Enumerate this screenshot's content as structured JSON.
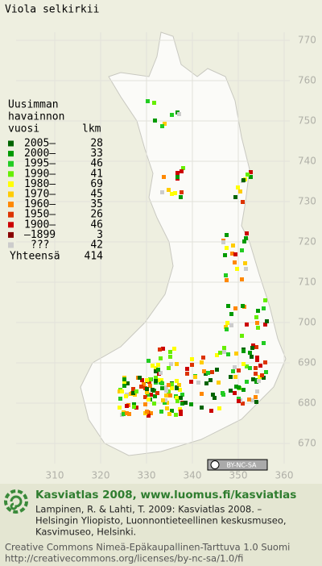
{
  "title": "Viola selkirkii",
  "legend": {
    "heading": [
      "Uusimman",
      "havainnon",
      "vuosi"
    ],
    "count_heading": "lkm",
    "rows": [
      {
        "label": "2005–",
        "count": 28,
        "color": "#006400"
      },
      {
        "label": "2000–",
        "count": 33,
        "color": "#009a00"
      },
      {
        "label": "1995–",
        "count": 46,
        "color": "#22cc22"
      },
      {
        "label": "1990–",
        "count": 41,
        "color": "#66ee00"
      },
      {
        "label": "1980–",
        "count": 69,
        "color": "#ffff00"
      },
      {
        "label": "1970–",
        "count": 45,
        "color": "#ffcc00"
      },
      {
        "label": "1960–",
        "count": 35,
        "color": "#ff8800"
      },
      {
        "label": "1950–",
        "count": 26,
        "color": "#dd3300"
      },
      {
        "label": "1900–",
        "count": 46,
        "color": "#cc0000"
      },
      {
        "label": "–1899",
        "count": 3,
        "color": "#880000"
      },
      {
        "label": "???",
        "count": 42,
        "color": "#cccccc"
      }
    ],
    "total_label": "Yhteensä",
    "total": 414
  },
  "axes": {
    "y_labels": [
      770,
      760,
      750,
      740,
      730,
      720,
      710,
      700,
      690,
      680,
      670
    ],
    "x_labels": [
      310,
      320,
      330,
      340,
      350,
      360
    ]
  },
  "license_badge": "BY-NC-SA",
  "footer": {
    "site": "Kasviatlas 2008, www.luomus.fi/kasviatlas",
    "citation": [
      "Lampinen, R. & Lahti, T. 2009: Kasviatlas 2008. –",
      "Helsingin Yliopisto, Luonnontieteellinen keskusmuseo,",
      "Kasvimuseo, Helsinki."
    ],
    "license": [
      "Creative Commons Nimeä-Epäkaupallinen-Tarttuva 1.0 Suomi",
      "http://creativecommons.org/licenses/by-nc-sa/1.0/fi"
    ]
  }
}
